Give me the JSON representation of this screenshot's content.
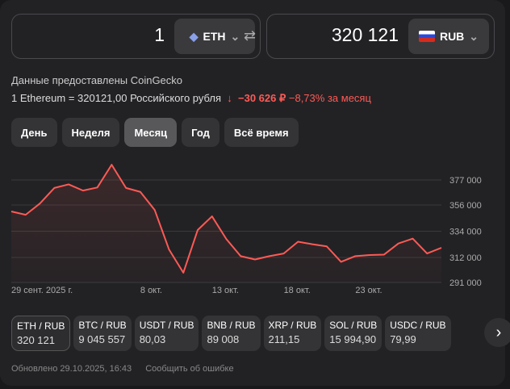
{
  "converter": {
    "from_amount": "1",
    "from_currency": "ETH",
    "from_icon": "ethereum-icon",
    "to_amount": "320 121",
    "to_currency": "RUB",
    "to_icon": "russia-flag-icon"
  },
  "source": "Данные предоставлены CoinGecko",
  "rate": {
    "text": "1 Ethereum = 320121,00 Российского рубля",
    "change_abs": "−30 626 ₽",
    "change_pct": "−8,73%",
    "period": "за месяц",
    "color": "#ff5a55"
  },
  "periods": [
    {
      "label": "День"
    },
    {
      "label": "Неделя"
    },
    {
      "label": "Месяц",
      "active": true
    },
    {
      "label": "Год"
    },
    {
      "label": "Всё время"
    }
  ],
  "chart_data": {
    "type": "area",
    "ylim": [
      291000,
      377000
    ],
    "yticks": [
      "377 000",
      "356 000",
      "334 000",
      "312 000",
      "291 000"
    ],
    "ytick_values": [
      377000,
      356000,
      334000,
      312000,
      291000
    ],
    "xticks": [
      {
        "label": "29 сент. 2025 г.",
        "index": 0
      },
      {
        "label": "8 окт.",
        "index": 9
      },
      {
        "label": "13 окт.",
        "index": 14
      },
      {
        "label": "18 окт.",
        "index": 19
      },
      {
        "label": "23 окт.",
        "index": 24
      }
    ],
    "values": [
      350600,
      347800,
      357300,
      370300,
      373300,
      368100,
      370700,
      389800,
      370300,
      367000,
      351900,
      318700,
      299200,
      335000,
      346500,
      327400,
      313100,
      310300,
      313100,
      315300,
      325200,
      323100,
      321300,
      308300,
      313100,
      314000,
      314400,
      323700,
      327800,
      315300,
      320121
    ],
    "color": "#ff5a55",
    "grid": true
  },
  "pairs": [
    {
      "name": "ETH / RUB",
      "value": "320 121",
      "active": true
    },
    {
      "name": "BTC / RUB",
      "value": "9 045 557"
    },
    {
      "name": "USDT / RUB",
      "value": "80,03"
    },
    {
      "name": "BNB / RUB",
      "value": "89 008"
    },
    {
      "name": "XRP / RUB",
      "value": "211,15"
    },
    {
      "name": "SOL / RUB",
      "value": "15 994,90"
    },
    {
      "name": "USDC / RUB",
      "value": "79,99"
    }
  ],
  "footer": {
    "updated": "Обновлено 29.10.2025, 16:43",
    "report": "Сообщить об ошибке"
  }
}
